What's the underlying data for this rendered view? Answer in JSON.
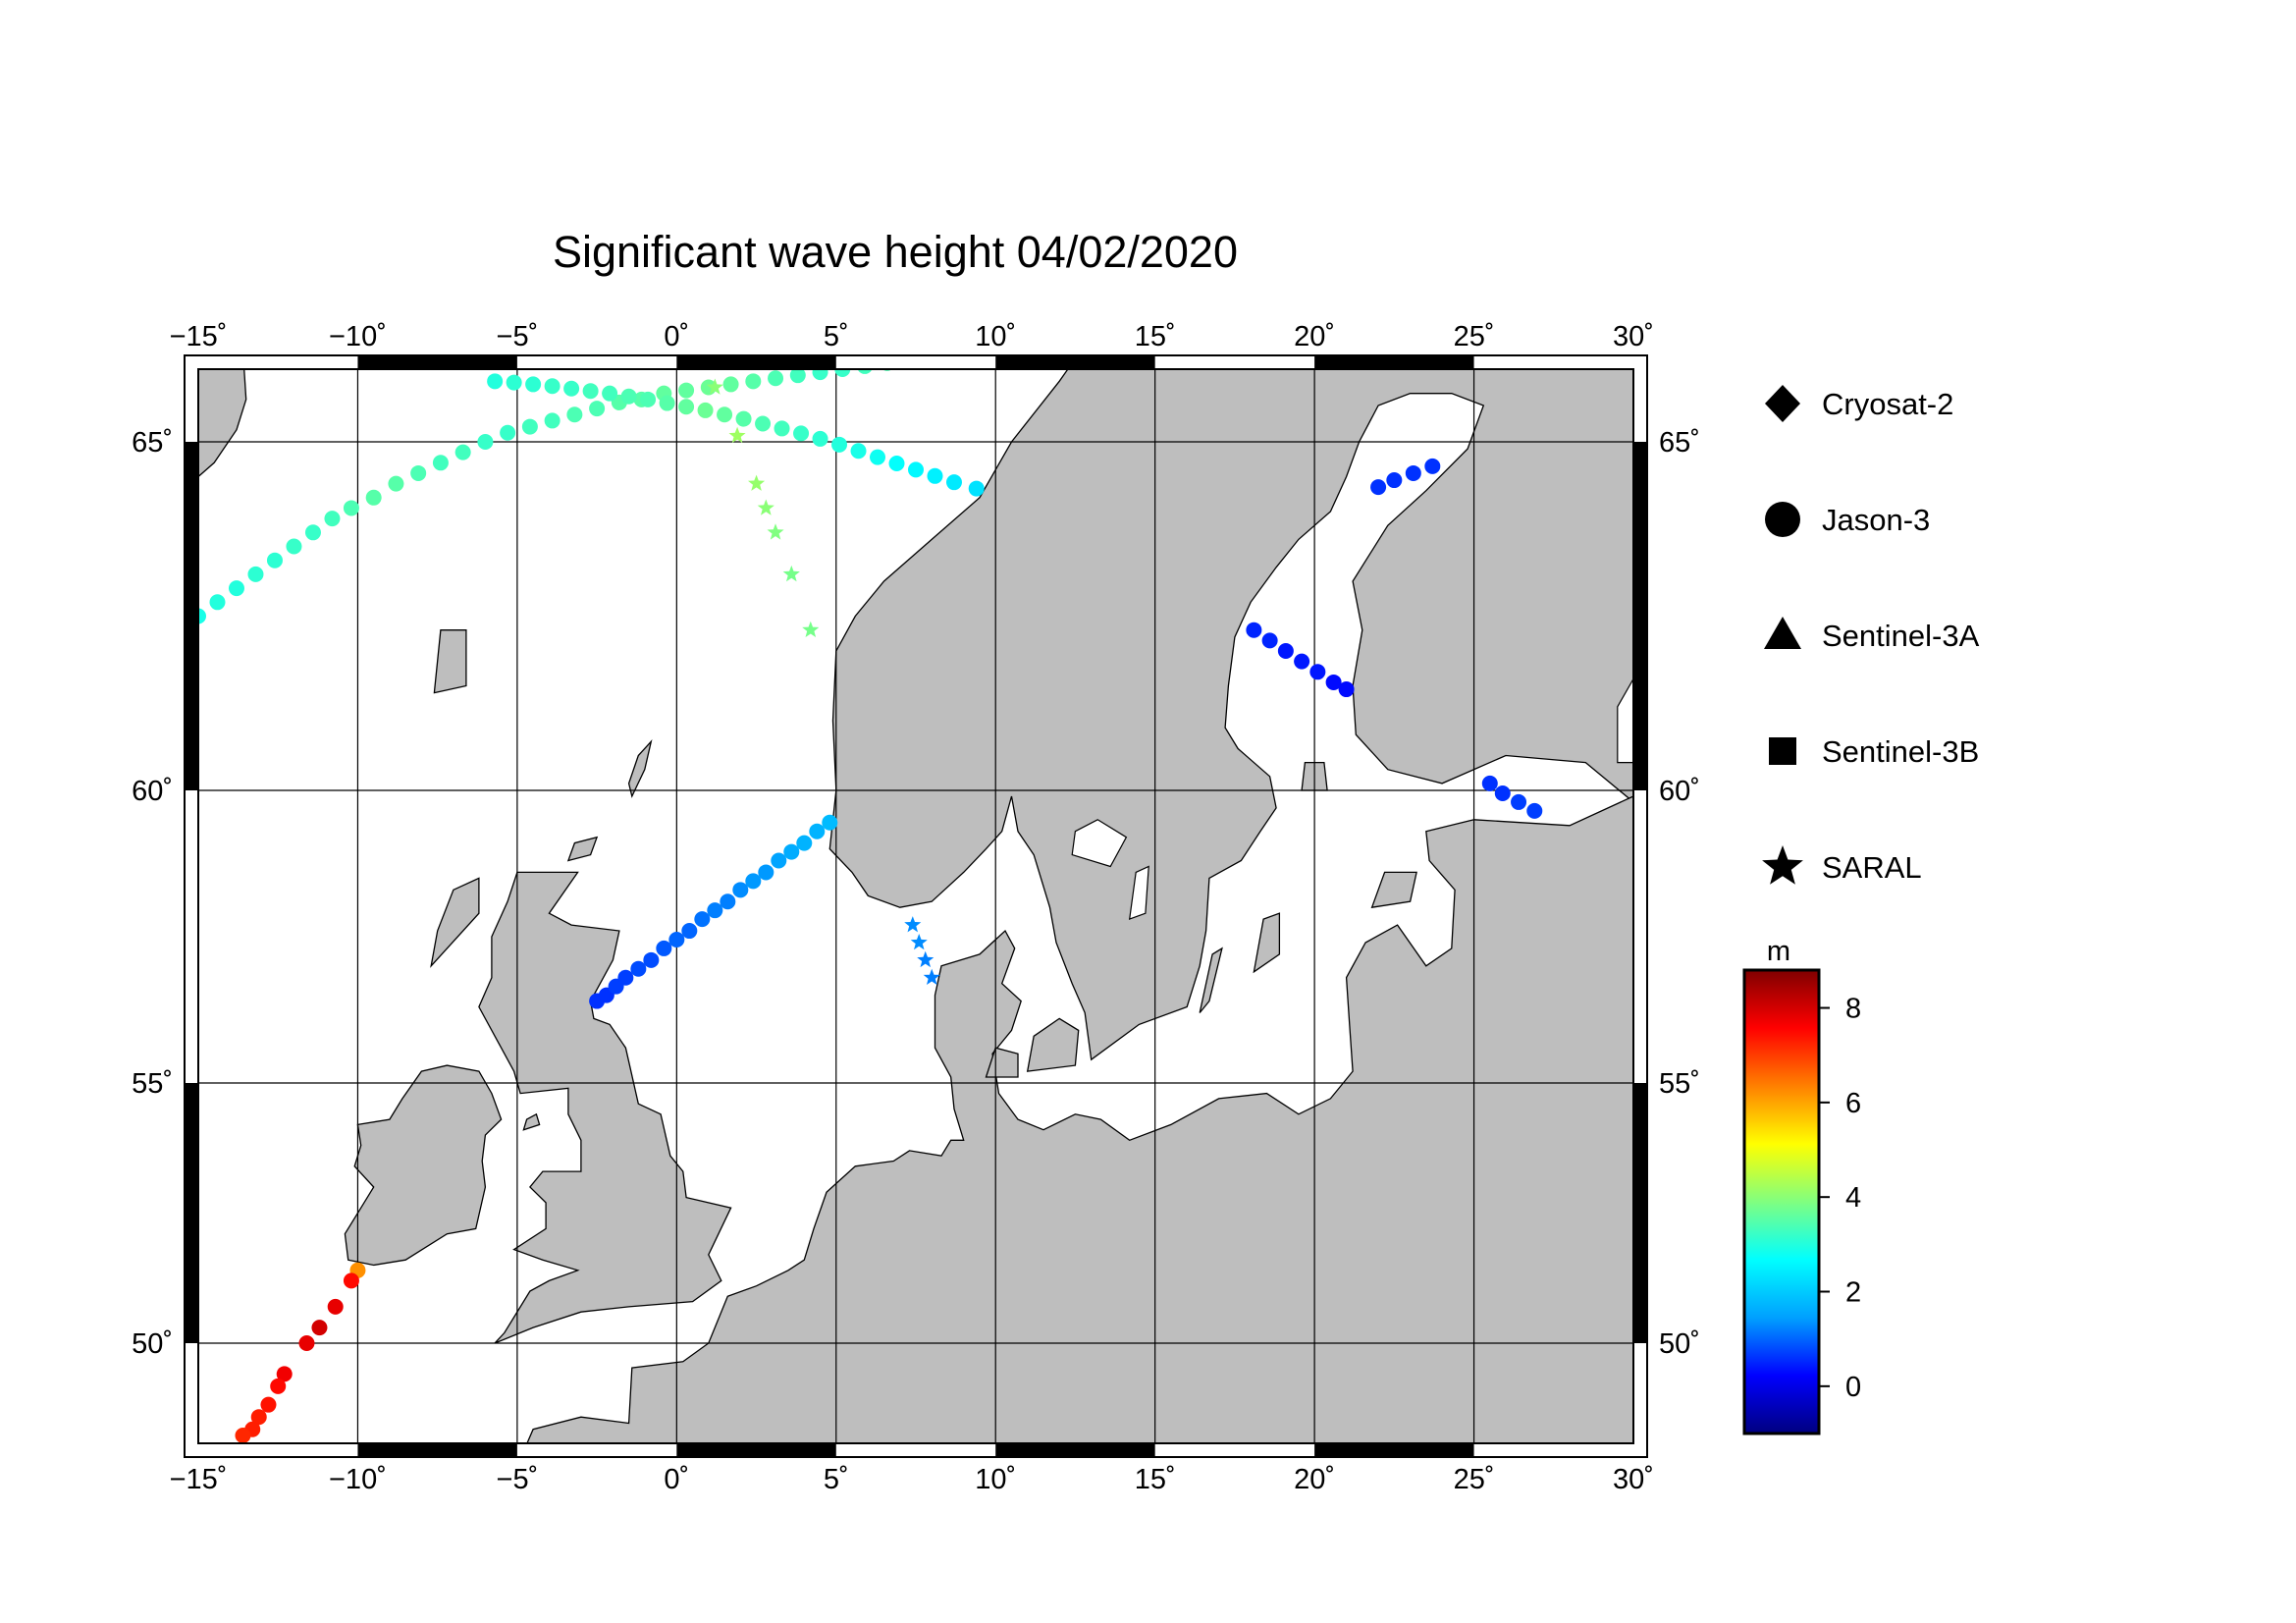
{
  "title": "Significant wave height 04/02/2020",
  "map": {
    "lon_range": [
      -15,
      30
    ],
    "lat_range": [
      48.5,
      66
    ],
    "lon_ticks": [
      -15,
      -10,
      -5,
      0,
      5,
      10,
      15,
      20,
      25,
      30
    ],
    "lat_ticks": [
      50,
      55,
      60,
      65
    ],
    "lon_tick_labels": [
      "−15˚",
      "−10˚",
      "−5˚",
      "0˚",
      "5˚",
      "10˚",
      "15˚",
      "20˚",
      "25˚",
      "30˚"
    ],
    "lat_tick_labels": [
      "50˚",
      "55˚",
      "60˚",
      "65˚"
    ],
    "land_color": "#bebebe",
    "sea_color": "#ffffff"
  },
  "legend": [
    {
      "label": "Cryosat-2",
      "symbol": "diamond"
    },
    {
      "label": "Jason-3",
      "symbol": "circle"
    },
    {
      "label": "Sentinel-3A",
      "symbol": "triangle"
    },
    {
      "label": "Sentinel-3B",
      "symbol": "square"
    },
    {
      "label": "SARAL",
      "symbol": "star"
    }
  ],
  "colorbar": {
    "unit": "m",
    "min": -1,
    "max": 8.8,
    "ticks": [
      0,
      2,
      4,
      6,
      8
    ],
    "tick_labels": [
      "0",
      "2",
      "4",
      "6",
      "8"
    ],
    "colors": [
      "#000080",
      "#0000ff",
      "#00a0ff",
      "#00ffff",
      "#80ff80",
      "#ffff00",
      "#ff8000",
      "#ff0000",
      "#800000"
    ]
  },
  "chart_data": {
    "type": "scatter",
    "title": "Significant wave height 04/02/2020",
    "xlabel": "",
    "ylabel": "",
    "xlim": [
      -15,
      30
    ],
    "ylim": [
      48.5,
      66
    ],
    "colorbar_unit": "m",
    "series": [
      {
        "name": "Jason-3",
        "symbol": "circle",
        "points": [
          [
            -10.0,
            51.4,
            6.2
          ],
          [
            -10.2,
            51.2,
            7.5
          ],
          [
            -10.7,
            50.7,
            7.8
          ],
          [
            -11.2,
            50.3,
            8.0
          ],
          [
            -11.6,
            50.0,
            7.8
          ],
          [
            -12.3,
            49.5,
            7.7
          ],
          [
            -12.5,
            49.3,
            7.5
          ],
          [
            -12.8,
            49.0,
            7.4
          ],
          [
            -13.1,
            48.8,
            7.3
          ],
          [
            -13.3,
            48.6,
            7.3
          ],
          [
            -13.6,
            48.5,
            7.2
          ]
        ]
      },
      {
        "name": "Jason-3",
        "symbol": "circle",
        "points": [
          [
            -2.5,
            56.4,
            0.6
          ],
          [
            -2.2,
            56.5,
            0.6
          ],
          [
            -1.9,
            56.65,
            0.7
          ],
          [
            -1.6,
            56.8,
            0.7
          ],
          [
            -1.2,
            56.95,
            0.8
          ],
          [
            -0.8,
            57.1,
            0.8
          ],
          [
            -0.4,
            57.3,
            0.9
          ],
          [
            0.0,
            57.45,
            1.0
          ],
          [
            0.4,
            57.6,
            1.0
          ],
          [
            0.8,
            57.8,
            1.1
          ],
          [
            1.2,
            57.95,
            1.2
          ],
          [
            1.6,
            58.1,
            1.2
          ],
          [
            2.0,
            58.3,
            1.3
          ],
          [
            2.4,
            58.45,
            1.4
          ],
          [
            2.8,
            58.6,
            1.4
          ],
          [
            3.2,
            58.8,
            1.5
          ],
          [
            3.6,
            58.95,
            1.6
          ],
          [
            4.0,
            59.1,
            1.7
          ],
          [
            4.4,
            59.3,
            1.7
          ],
          [
            4.8,
            59.45,
            1.8
          ]
        ]
      },
      {
        "name": "Jason-3",
        "symbol": "circle",
        "points": [
          [
            -15.0,
            62.5,
            2.9
          ],
          [
            -14.4,
            62.7,
            3.0
          ],
          [
            -13.8,
            62.9,
            3.0
          ],
          [
            -13.2,
            63.1,
            3.1
          ],
          [
            -12.6,
            63.3,
            3.1
          ],
          [
            -12.0,
            63.5,
            3.2
          ],
          [
            -11.4,
            63.7,
            3.2
          ],
          [
            -10.8,
            63.9,
            3.3
          ],
          [
            -10.2,
            64.05,
            3.4
          ],
          [
            -9.5,
            64.2,
            3.5
          ],
          [
            -8.8,
            64.4,
            3.5
          ],
          [
            -8.1,
            64.55,
            3.4
          ],
          [
            -7.4,
            64.7,
            3.3
          ],
          [
            -6.7,
            64.85,
            3.3
          ],
          [
            -6.0,
            65.0,
            3.2
          ],
          [
            -5.3,
            65.15,
            3.2
          ],
          [
            -4.6,
            65.25,
            3.3
          ],
          [
            -3.9,
            65.35,
            3.3
          ],
          [
            -3.2,
            65.45,
            3.4
          ],
          [
            -2.5,
            65.55,
            3.4
          ],
          [
            -1.8,
            65.65,
            3.5
          ],
          [
            -1.1,
            65.7,
            3.5
          ],
          [
            -0.4,
            65.8,
            3.6
          ],
          [
            0.3,
            65.85,
            3.6
          ],
          [
            1.0,
            65.9,
            3.7
          ],
          [
            1.7,
            65.95,
            3.6
          ],
          [
            2.4,
            66.0,
            3.5
          ],
          [
            3.1,
            66.05,
            3.4
          ],
          [
            3.8,
            66.1,
            3.3
          ],
          [
            4.5,
            66.15,
            3.2
          ],
          [
            5.2,
            66.2,
            3.2
          ],
          [
            5.9,
            66.25,
            3.3
          ],
          [
            6.6,
            66.3,
            3.4
          ],
          [
            7.3,
            66.35,
            3.5
          ],
          [
            8.0,
            66.4,
            3.5
          ],
          [
            8.7,
            66.45,
            3.4
          ]
        ]
      },
      {
        "name": "Jason-3",
        "symbol": "circle",
        "points": [
          [
            -5.7,
            66.0,
            3.0
          ],
          [
            -5.1,
            65.98,
            3.1
          ],
          [
            -4.5,
            65.95,
            3.1
          ],
          [
            -3.9,
            65.92,
            3.2
          ],
          [
            -3.3,
            65.88,
            3.2
          ],
          [
            -2.7,
            65.84,
            3.3
          ],
          [
            -2.1,
            65.8,
            3.3
          ],
          [
            -1.5,
            65.75,
            3.4
          ],
          [
            -0.9,
            65.7,
            3.4
          ],
          [
            -0.3,
            65.64,
            3.5
          ],
          [
            0.3,
            65.58,
            3.6
          ],
          [
            0.9,
            65.52,
            3.7
          ],
          [
            1.5,
            65.45,
            3.6
          ],
          [
            2.1,
            65.38,
            3.5
          ],
          [
            2.7,
            65.3,
            3.4
          ],
          [
            3.3,
            65.22,
            3.3
          ],
          [
            3.9,
            65.14,
            3.2
          ],
          [
            4.5,
            65.05,
            3.1
          ],
          [
            5.1,
            64.96,
            3.0
          ],
          [
            5.7,
            64.87,
            2.9
          ],
          [
            6.3,
            64.78,
            2.8
          ],
          [
            6.9,
            64.69,
            2.7
          ],
          [
            7.5,
            64.6,
            2.6
          ],
          [
            8.1,
            64.51,
            2.5
          ],
          [
            8.7,
            64.42,
            2.4
          ],
          [
            9.4,
            64.33,
            2.3
          ]
        ]
      },
      {
        "name": "Jason-3",
        "symbol": "circle",
        "points": [
          [
            18.1,
            62.3,
            0.5
          ],
          [
            18.6,
            62.15,
            0.5
          ],
          [
            19.1,
            62.0,
            0.4
          ],
          [
            19.6,
            61.85,
            0.4
          ],
          [
            20.1,
            61.7,
            0.4
          ],
          [
            20.6,
            61.55,
            0.3
          ],
          [
            21.0,
            61.45,
            0.3
          ]
        ]
      },
      {
        "name": "Jason-3",
        "symbol": "circle",
        "points": [
          [
            22.0,
            64.35,
            0.6
          ],
          [
            22.5,
            64.45,
            0.6
          ],
          [
            23.1,
            64.55,
            0.6
          ],
          [
            23.7,
            64.65,
            0.6
          ]
        ]
      },
      {
        "name": "Jason-3",
        "symbol": "circle",
        "points": [
          [
            25.5,
            60.1,
            0.6
          ],
          [
            25.9,
            59.95,
            0.6
          ],
          [
            26.4,
            59.8,
            0.7
          ],
          [
            26.9,
            59.65,
            0.7
          ]
        ]
      },
      {
        "name": "SARAL",
        "symbol": "star",
        "points": [
          [
            1.2,
            65.9,
            4.0
          ],
          [
            1.9,
            65.1,
            4.2
          ],
          [
            2.5,
            64.4,
            4.1
          ],
          [
            2.8,
            64.05,
            4.0
          ],
          [
            3.1,
            63.7,
            3.9
          ],
          [
            3.6,
            63.1,
            3.8
          ],
          [
            4.2,
            62.3,
            3.8
          ]
        ]
      },
      {
        "name": "SARAL",
        "symbol": "star",
        "points": [
          [
            7.4,
            57.7,
            1.3
          ],
          [
            7.6,
            57.4,
            1.3
          ],
          [
            7.8,
            57.1,
            1.2
          ],
          [
            8.0,
            56.8,
            1.2
          ]
        ]
      }
    ]
  }
}
